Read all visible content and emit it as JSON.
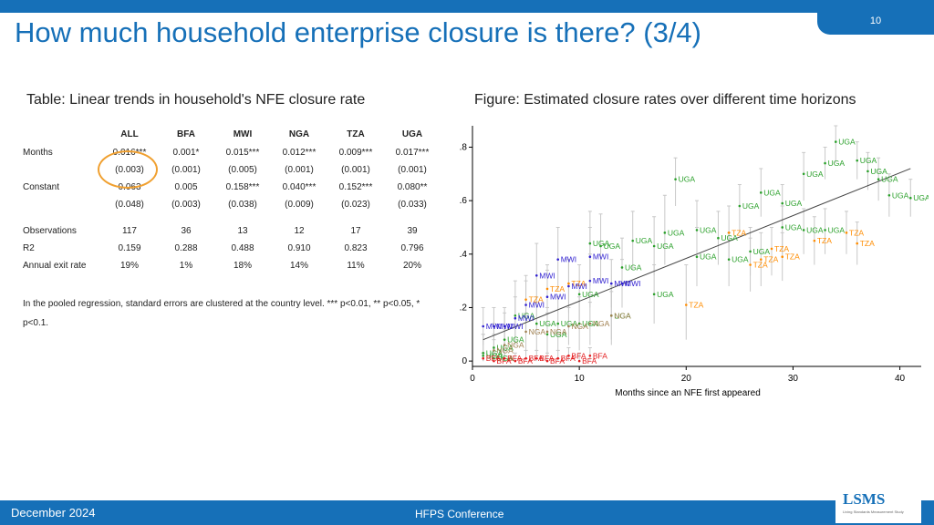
{
  "page_number": "10",
  "title": "How much household enterprise closure is there? (3/4)",
  "table_caption": "Table: Linear trends in household's NFE closure rate",
  "figure_caption": "Figure: Estimated closure rates over different time horizons",
  "table": {
    "headers": [
      "ALL",
      "BFA",
      "MWI",
      "NGA",
      "TZA",
      "UGA"
    ],
    "rows": [
      {
        "label": "Months",
        "values": [
          "0.016***",
          "0.001*",
          "0.015***",
          "0.012***",
          "0.009***",
          "0.017***"
        ]
      },
      {
        "label": "",
        "values": [
          "(0.003)",
          "(0.001)",
          "(0.005)",
          "(0.001)",
          "(0.001)",
          "(0.001)"
        ]
      },
      {
        "label": "Constant",
        "values": [
          "0.063",
          "0.005",
          "0.158***",
          "0.040***",
          "0.152***",
          "0.080**"
        ]
      },
      {
        "label": "",
        "values": [
          "(0.048)",
          "(0.003)",
          "(0.038)",
          "(0.009)",
          "(0.023)",
          "(0.033)"
        ]
      },
      {
        "label": "Observations",
        "values": [
          "117",
          "36",
          "13",
          "12",
          "17",
          "39"
        ]
      },
      {
        "label": "R2",
        "values": [
          "0.159",
          "0.288",
          "0.488",
          "0.910",
          "0.823",
          "0.796"
        ]
      },
      {
        "label": "Annual exit rate",
        "values": [
          "19%",
          "1%",
          "18%",
          "14%",
          "11%",
          "20%"
        ]
      }
    ],
    "note": "In the pooled regression, standard errors are clustered at the country level. *** p<0.01, ** p<0.05, * p<0.1."
  },
  "chart_data": {
    "type": "scatter",
    "xlabel": "Months since an NFE first appeared",
    "ylabel": "",
    "xlim": [
      0,
      42
    ],
    "ylim": [
      -0.02,
      0.88
    ],
    "xticks": [
      "0",
      "10",
      "20",
      "30",
      "40"
    ],
    "yticks": [
      "0",
      ".2",
      ".4",
      ".6",
      ".8"
    ],
    "fit_line": {
      "x": [
        1,
        41
      ],
      "y": [
        0.08,
        0.72
      ]
    },
    "colors": {
      "UGA": "#2aa02a",
      "TZA": "#ff8c00",
      "MWI": "#2f1fd0",
      "NGA": "#a08050",
      "BFA": "#e41a1c"
    },
    "points": [
      {
        "c": "UGA",
        "x": 34,
        "y": 0.82,
        "lo": 0.74,
        "hi": 0.88
      },
      {
        "c": "UGA",
        "x": 33,
        "y": 0.74,
        "lo": 0.68,
        "hi": 0.8
      },
      {
        "c": "UGA",
        "x": 36,
        "y": 0.75,
        "lo": 0.68,
        "hi": 0.82
      },
      {
        "c": "UGA",
        "x": 31,
        "y": 0.7,
        "lo": 0.6,
        "hi": 0.78
      },
      {
        "c": "UGA",
        "x": 37,
        "y": 0.71,
        "lo": 0.64,
        "hi": 0.78
      },
      {
        "c": "UGA",
        "x": 38,
        "y": 0.68,
        "lo": 0.6,
        "hi": 0.76
      },
      {
        "c": "UGA",
        "x": 19,
        "y": 0.68,
        "lo": 0.58,
        "hi": 0.76
      },
      {
        "c": "UGA",
        "x": 27,
        "y": 0.63,
        "lo": 0.54,
        "hi": 0.72
      },
      {
        "c": "UGA",
        "x": 29,
        "y": 0.59,
        "lo": 0.5,
        "hi": 0.66
      },
      {
        "c": "UGA",
        "x": 39,
        "y": 0.62,
        "lo": 0.54,
        "hi": 0.7
      },
      {
        "c": "UGA",
        "x": 41,
        "y": 0.61,
        "lo": 0.54,
        "hi": 0.68
      },
      {
        "c": "UGA",
        "x": 25,
        "y": 0.58,
        "lo": 0.48,
        "hi": 0.66
      },
      {
        "c": "UGA",
        "x": 18,
        "y": 0.48,
        "lo": 0.36,
        "hi": 0.62
      },
      {
        "c": "UGA",
        "x": 21,
        "y": 0.49,
        "lo": 0.38,
        "hi": 0.6
      },
      {
        "c": "UGA",
        "x": 23,
        "y": 0.46,
        "lo": 0.36,
        "hi": 0.56
      },
      {
        "c": "UGA",
        "x": 29,
        "y": 0.5,
        "lo": 0.4,
        "hi": 0.58
      },
      {
        "c": "UGA",
        "x": 31,
        "y": 0.49,
        "lo": 0.4,
        "hi": 0.57
      },
      {
        "c": "UGA",
        "x": 33,
        "y": 0.49,
        "lo": 0.4,
        "hi": 0.57
      },
      {
        "c": "UGA",
        "x": 15,
        "y": 0.45,
        "lo": 0.34,
        "hi": 0.56
      },
      {
        "c": "UGA",
        "x": 17,
        "y": 0.43,
        "lo": 0.32,
        "hi": 0.54
      },
      {
        "c": "UGA",
        "x": 11,
        "y": 0.44,
        "lo": 0.3,
        "hi": 0.56
      },
      {
        "c": "UGA",
        "x": 12,
        "y": 0.43,
        "lo": 0.3,
        "hi": 0.55
      },
      {
        "c": "UGA",
        "x": 21,
        "y": 0.39,
        "lo": 0.28,
        "hi": 0.5
      },
      {
        "c": "UGA",
        "x": 24,
        "y": 0.38,
        "lo": 0.28,
        "hi": 0.48
      },
      {
        "c": "UGA",
        "x": 26,
        "y": 0.41,
        "lo": 0.32,
        "hi": 0.5
      },
      {
        "c": "UGA",
        "x": 14,
        "y": 0.35,
        "lo": 0.24,
        "hi": 0.46
      },
      {
        "c": "UGA",
        "x": 17,
        "y": 0.25,
        "lo": 0.14,
        "hi": 0.36
      },
      {
        "c": "UGA",
        "x": 10,
        "y": 0.25,
        "lo": 0.14,
        "hi": 0.36
      },
      {
        "c": "UGA",
        "x": 13,
        "y": 0.17,
        "lo": 0.06,
        "hi": 0.28
      },
      {
        "c": "UGA",
        "x": 4,
        "y": 0.17,
        "lo": 0.06,
        "hi": 0.3
      },
      {
        "c": "UGA",
        "x": 6,
        "y": 0.14,
        "lo": 0.04,
        "hi": 0.24
      },
      {
        "c": "UGA",
        "x": 8,
        "y": 0.14,
        "lo": 0.04,
        "hi": 0.24
      },
      {
        "c": "UGA",
        "x": 10,
        "y": 0.14,
        "lo": 0.04,
        "hi": 0.24
      },
      {
        "c": "UGA",
        "x": 7,
        "y": 0.1,
        "lo": 0.02,
        "hi": 0.2
      },
      {
        "c": "UGA",
        "x": 3,
        "y": 0.08,
        "lo": 0.0,
        "hi": 0.18
      },
      {
        "c": "UGA",
        "x": 2,
        "y": 0.05,
        "lo": 0.0,
        "hi": 0.14
      },
      {
        "c": "UGA",
        "x": 1,
        "y": 0.03,
        "lo": 0.0,
        "hi": 0.1
      },
      {
        "c": "UGA",
        "x": 1,
        "y": 0.02,
        "lo": 0.0,
        "hi": 0.1
      },
      {
        "c": "UGA",
        "x": 2,
        "y": 0.01,
        "lo": 0.0,
        "hi": 0.08
      },
      {
        "c": "TZA",
        "x": 24,
        "y": 0.48,
        "lo": 0.38,
        "hi": 0.58
      },
      {
        "c": "TZA",
        "x": 32,
        "y": 0.45,
        "lo": 0.36,
        "hi": 0.54
      },
      {
        "c": "TZA",
        "x": 35,
        "y": 0.48,
        "lo": 0.4,
        "hi": 0.56
      },
      {
        "c": "TZA",
        "x": 36,
        "y": 0.44,
        "lo": 0.36,
        "hi": 0.52
      },
      {
        "c": "TZA",
        "x": 28,
        "y": 0.42,
        "lo": 0.32,
        "hi": 0.5
      },
      {
        "c": "TZA",
        "x": 29,
        "y": 0.39,
        "lo": 0.3,
        "hi": 0.48
      },
      {
        "c": "TZA",
        "x": 27,
        "y": 0.38,
        "lo": 0.28,
        "hi": 0.48
      },
      {
        "c": "TZA",
        "x": 26,
        "y": 0.36,
        "lo": 0.26,
        "hi": 0.46
      },
      {
        "c": "TZA",
        "x": 20,
        "y": 0.21,
        "lo": 0.08,
        "hi": 0.36
      },
      {
        "c": "TZA",
        "x": 9,
        "y": 0.29,
        "lo": 0.2,
        "hi": 0.38
      },
      {
        "c": "TZA",
        "x": 7,
        "y": 0.27,
        "lo": 0.18,
        "hi": 0.36
      },
      {
        "c": "TZA",
        "x": 5,
        "y": 0.23,
        "lo": 0.14,
        "hi": 0.32
      },
      {
        "c": "MWI",
        "x": 8,
        "y": 0.38,
        "lo": 0.26,
        "hi": 0.5
      },
      {
        "c": "MWI",
        "x": 11,
        "y": 0.39,
        "lo": 0.28,
        "hi": 0.5
      },
      {
        "c": "MWI",
        "x": 6,
        "y": 0.32,
        "lo": 0.2,
        "hi": 0.44
      },
      {
        "c": "MWI",
        "x": 11,
        "y": 0.3,
        "lo": 0.2,
        "hi": 0.4
      },
      {
        "c": "MWI",
        "x": 13,
        "y": 0.29,
        "lo": 0.2,
        "hi": 0.38
      },
      {
        "c": "MWI",
        "x": 9,
        "y": 0.28,
        "lo": 0.18,
        "hi": 0.38
      },
      {
        "c": "MWI",
        "x": 14,
        "y": 0.29,
        "lo": 0.2,
        "hi": 0.38
      },
      {
        "c": "MWI",
        "x": 7,
        "y": 0.24,
        "lo": 0.14,
        "hi": 0.34
      },
      {
        "c": "MWI",
        "x": 5,
        "y": 0.21,
        "lo": 0.12,
        "hi": 0.3
      },
      {
        "c": "MWI",
        "x": 4,
        "y": 0.16,
        "lo": 0.08,
        "hi": 0.24
      },
      {
        "c": "MWI",
        "x": 2,
        "y": 0.13,
        "lo": 0.06,
        "hi": 0.2
      },
      {
        "c": "MWI",
        "x": 3,
        "y": 0.13,
        "lo": 0.06,
        "hi": 0.2
      },
      {
        "c": "MWI",
        "x": 1,
        "y": 0.13,
        "lo": 0.06,
        "hi": 0.2
      },
      {
        "c": "NGA",
        "x": 13,
        "y": 0.17,
        "lo": 0.08,
        "hi": 0.26
      },
      {
        "c": "NGA",
        "x": 11,
        "y": 0.14,
        "lo": 0.06,
        "hi": 0.22
      },
      {
        "c": "NGA",
        "x": 9,
        "y": 0.13,
        "lo": 0.06,
        "hi": 0.2
      },
      {
        "c": "NGA",
        "x": 7,
        "y": 0.11,
        "lo": 0.04,
        "hi": 0.18
      },
      {
        "c": "NGA",
        "x": 5,
        "y": 0.11,
        "lo": 0.04,
        "hi": 0.18
      },
      {
        "c": "NGA",
        "x": 3,
        "y": 0.06,
        "lo": 0.0,
        "hi": 0.12
      },
      {
        "c": "NGA",
        "x": 2,
        "y": 0.04,
        "lo": 0.0,
        "hi": 0.1
      },
      {
        "c": "BFA",
        "x": 11,
        "y": 0.02,
        "lo": 0.0,
        "hi": 0.05
      },
      {
        "c": "BFA",
        "x": 9,
        "y": 0.02,
        "lo": 0.0,
        "hi": 0.05
      },
      {
        "c": "BFA",
        "x": 8,
        "y": 0.01,
        "lo": 0.0,
        "hi": 0.04
      },
      {
        "c": "BFA",
        "x": 6,
        "y": 0.01,
        "lo": 0.0,
        "hi": 0.04
      },
      {
        "c": "BFA",
        "x": 5,
        "y": 0.01,
        "lo": 0.0,
        "hi": 0.04
      },
      {
        "c": "BFA",
        "x": 3,
        "y": 0.01,
        "lo": 0.0,
        "hi": 0.04
      },
      {
        "c": "BFA",
        "x": 2,
        "y": 0.0,
        "lo": 0.0,
        "hi": 0.03
      },
      {
        "c": "BFA",
        "x": 1,
        "y": 0.01,
        "lo": 0.0,
        "hi": 0.03
      },
      {
        "c": "BFA",
        "x": 4,
        "y": 0.0,
        "lo": 0.0,
        "hi": 0.03
      },
      {
        "c": "BFA",
        "x": 7,
        "y": 0.0,
        "lo": 0.0,
        "hi": 0.03
      },
      {
        "c": "BFA",
        "x": 10,
        "y": 0.0,
        "lo": 0.0,
        "hi": 0.03
      }
    ]
  },
  "footer": {
    "date": "December 2024",
    "event": "HFPS Conference",
    "logo_text": "LSMS",
    "logo_sub": "Living Standards Measurement Study"
  }
}
